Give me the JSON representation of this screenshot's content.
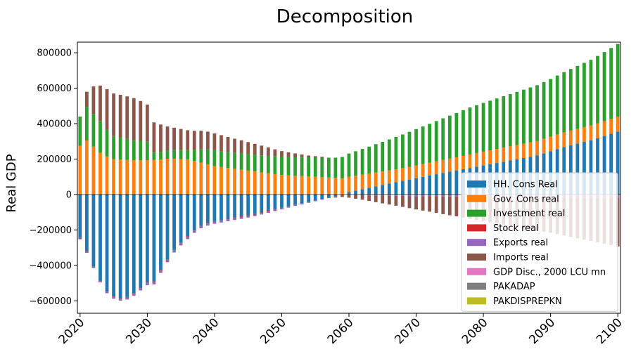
{
  "chart_data": {
    "type": "bar",
    "stacked": true,
    "title": "Decomposition",
    "xlabel": "",
    "ylabel": "Real GDP",
    "x_start": 2020,
    "x_end": 2100,
    "xlim": [
      2019.6,
      2100.4
    ],
    "ylim": [
      -670000,
      860000
    ],
    "x_ticks": [
      2020,
      2030,
      2040,
      2050,
      2060,
      2070,
      2080,
      2090,
      2100
    ],
    "y_ticks": [
      -600000,
      -400000,
      -200000,
      0,
      200000,
      400000,
      600000,
      800000
    ],
    "y_tick_labels": [
      "−600000",
      "−400000",
      "−200000",
      "0",
      "200000",
      "400000",
      "600000",
      "800000"
    ],
    "legend_position": "lower-right",
    "series": [
      {
        "name": "HH. Cons Real",
        "color": "#1f77b4",
        "anchors": [
          [
            2020,
            -245000
          ],
          [
            2021,
            -320000
          ],
          [
            2022,
            -405000
          ],
          [
            2023,
            -485000
          ],
          [
            2024,
            -545000
          ],
          [
            2025,
            -575000
          ],
          [
            2026,
            -585000
          ],
          [
            2027,
            -578000
          ],
          [
            2028,
            -555000
          ],
          [
            2029,
            -525000
          ],
          [
            2030,
            -495000
          ],
          [
            2031,
            -490000
          ],
          [
            2032,
            -425000
          ],
          [
            2033,
            -365000
          ],
          [
            2034,
            -310000
          ],
          [
            2035,
            -270000
          ],
          [
            2036,
            -235000
          ],
          [
            2037,
            -200000
          ],
          [
            2038,
            -175000
          ],
          [
            2039,
            -160000
          ],
          [
            2040,
            -150000
          ],
          [
            2041,
            -143000
          ],
          [
            2042,
            -137000
          ],
          [
            2043,
            -130000
          ],
          [
            2044,
            -124000
          ],
          [
            2045,
            -117000
          ],
          [
            2046,
            -110000
          ],
          [
            2047,
            -101000
          ],
          [
            2048,
            -92000
          ],
          [
            2049,
            -83000
          ],
          [
            2050,
            -74000
          ],
          [
            2051,
            -65000
          ],
          [
            2052,
            -56000
          ],
          [
            2053,
            -48000
          ],
          [
            2054,
            -40000
          ],
          [
            2055,
            -32000
          ],
          [
            2056,
            -24000
          ],
          [
            2057,
            -16000
          ],
          [
            2058,
            -8000
          ],
          [
            2059,
            0
          ],
          [
            2060,
            14000
          ],
          [
            2062,
            30000
          ],
          [
            2064,
            46000
          ],
          [
            2066,
            62000
          ],
          [
            2068,
            77000
          ],
          [
            2070,
            92000
          ],
          [
            2072,
            107000
          ],
          [
            2074,
            122000
          ],
          [
            2076,
            136000
          ],
          [
            2078,
            150000
          ],
          [
            2080,
            164000
          ],
          [
            2082,
            178000
          ],
          [
            2084,
            192000
          ],
          [
            2086,
            206000
          ],
          [
            2088,
            220000
          ],
          [
            2090,
            245000
          ],
          [
            2092,
            268000
          ],
          [
            2094,
            288000
          ],
          [
            2096,
            306000
          ],
          [
            2098,
            330000
          ],
          [
            2100,
            355000
          ]
        ]
      },
      {
        "name": "Gov. Cons real",
        "color": "#ff7f0e",
        "anchors": [
          [
            2020,
            275000
          ],
          [
            2021,
            305000
          ],
          [
            2022,
            270000
          ],
          [
            2023,
            235000
          ],
          [
            2024,
            215000
          ],
          [
            2025,
            200000
          ],
          [
            2026,
            198000
          ],
          [
            2027,
            196000
          ],
          [
            2028,
            194000
          ],
          [
            2029,
            193000
          ],
          [
            2030,
            193000
          ],
          [
            2031,
            195000
          ],
          [
            2032,
            198000
          ],
          [
            2033,
            202000
          ],
          [
            2034,
            202000
          ],
          [
            2035,
            200000
          ],
          [
            2036,
            197000
          ],
          [
            2037,
            190000
          ],
          [
            2038,
            180000
          ],
          [
            2039,
            170000
          ],
          [
            2040,
            160000
          ],
          [
            2041,
            155000
          ],
          [
            2042,
            150000
          ],
          [
            2043,
            145000
          ],
          [
            2044,
            140000
          ],
          [
            2045,
            135000
          ],
          [
            2046,
            130000
          ],
          [
            2047,
            125000
          ],
          [
            2048,
            120000
          ],
          [
            2049,
            115000
          ],
          [
            2050,
            110000
          ],
          [
            2052,
            106000
          ],
          [
            2054,
            102000
          ],
          [
            2056,
            98000
          ],
          [
            2058,
            94000
          ],
          [
            2059,
            90000
          ],
          [
            2060,
            87000
          ],
          [
            2062,
            82000
          ],
          [
            2064,
            78000
          ],
          [
            2066,
            74000
          ],
          [
            2068,
            72000
          ],
          [
            2070,
            72000
          ],
          [
            2072,
            72000
          ],
          [
            2074,
            73000
          ],
          [
            2076,
            74000
          ],
          [
            2078,
            76000
          ],
          [
            2080,
            78000
          ],
          [
            2082,
            79000
          ],
          [
            2084,
            80000
          ],
          [
            2086,
            81000
          ],
          [
            2088,
            82000
          ],
          [
            2090,
            82000
          ],
          [
            2092,
            83000
          ],
          [
            2094,
            83000
          ],
          [
            2096,
            84000
          ],
          [
            2098,
            84000
          ],
          [
            2100,
            85000
          ]
        ]
      },
      {
        "name": "Investment real",
        "color": "#2ca02c",
        "anchors": [
          [
            2020,
            165000
          ],
          [
            2021,
            190000
          ],
          [
            2022,
            185000
          ],
          [
            2023,
            180000
          ],
          [
            2024,
            150000
          ],
          [
            2025,
            130000
          ],
          [
            2026,
            125000
          ],
          [
            2027,
            118000
          ],
          [
            2028,
            110000
          ],
          [
            2029,
            110000
          ],
          [
            2030,
            105000
          ],
          [
            2031,
            42000
          ],
          [
            2032,
            42000
          ],
          [
            2033,
            45000
          ],
          [
            2034,
            50000
          ],
          [
            2035,
            52000
          ],
          [
            2036,
            54000
          ],
          [
            2037,
            62000
          ],
          [
            2038,
            75000
          ],
          [
            2039,
            85000
          ],
          [
            2040,
            90000
          ],
          [
            2041,
            90000
          ],
          [
            2042,
            90000
          ],
          [
            2043,
            90000
          ],
          [
            2044,
            92000
          ],
          [
            2045,
            93000
          ],
          [
            2046,
            94000
          ],
          [
            2047,
            96000
          ],
          [
            2048,
            98000
          ],
          [
            2049,
            100000
          ],
          [
            2050,
            102000
          ],
          [
            2052,
            104000
          ],
          [
            2054,
            106000
          ],
          [
            2056,
            110000
          ],
          [
            2058,
            114000
          ],
          [
            2060,
            130000
          ],
          [
            2062,
            145000
          ],
          [
            2064,
            160000
          ],
          [
            2066,
            175000
          ],
          [
            2068,
            190000
          ],
          [
            2070,
            205000
          ],
          [
            2072,
            220000
          ],
          [
            2074,
            235000
          ],
          [
            2076,
            250000
          ],
          [
            2078,
            265000
          ],
          [
            2080,
            275000
          ],
          [
            2082,
            285000
          ],
          [
            2084,
            295000
          ],
          [
            2086,
            305000
          ],
          [
            2088,
            315000
          ],
          [
            2090,
            325000
          ],
          [
            2092,
            340000
          ],
          [
            2094,
            355000
          ],
          [
            2096,
            370000
          ],
          [
            2098,
            390000
          ],
          [
            2100,
            410000
          ]
        ]
      },
      {
        "name": "Stock real",
        "color": "#d62728",
        "anchors": [
          [
            2020,
            -3000
          ],
          [
            2100,
            -3000
          ]
        ]
      },
      {
        "name": "Exports real",
        "color": "#9467bd",
        "anchors": [
          [
            2020,
            -5000
          ],
          [
            2025,
            -10000
          ],
          [
            2030,
            -14000
          ],
          [
            2035,
            -14000
          ],
          [
            2040,
            -12000
          ],
          [
            2045,
            -10000
          ],
          [
            2050,
            -7000
          ],
          [
            2055,
            -3000
          ],
          [
            2060,
            0
          ],
          [
            2070,
            -6000
          ],
          [
            2080,
            -10000
          ],
          [
            2090,
            -13000
          ],
          [
            2100,
            -15000
          ]
        ]
      },
      {
        "name": "Imports real",
        "color": "#8c564b",
        "anchors": [
          [
            2020,
            0
          ],
          [
            2021,
            85000
          ],
          [
            2022,
            155000
          ],
          [
            2023,
            200000
          ],
          [
            2024,
            230000
          ],
          [
            2025,
            240000
          ],
          [
            2026,
            240000
          ],
          [
            2027,
            240000
          ],
          [
            2028,
            240000
          ],
          [
            2029,
            225000
          ],
          [
            2030,
            210000
          ],
          [
            2031,
            170000
          ],
          [
            2032,
            155000
          ],
          [
            2033,
            137000
          ],
          [
            2034,
            125000
          ],
          [
            2035,
            118000
          ],
          [
            2036,
            112000
          ],
          [
            2037,
            108000
          ],
          [
            2038,
            105000
          ],
          [
            2039,
            100000
          ],
          [
            2040,
            95000
          ],
          [
            2041,
            90000
          ],
          [
            2042,
            85000
          ],
          [
            2043,
            80000
          ],
          [
            2044,
            74000
          ],
          [
            2045,
            68000
          ],
          [
            2046,
            62000
          ],
          [
            2047,
            55000
          ],
          [
            2048,
            48000
          ],
          [
            2049,
            40000
          ],
          [
            2050,
            33000
          ],
          [
            2052,
            22000
          ],
          [
            2054,
            12000
          ],
          [
            2056,
            5000
          ],
          [
            2057,
            0
          ],
          [
            2058,
            -5000
          ],
          [
            2060,
            -15000
          ],
          [
            2062,
            -25000
          ],
          [
            2064,
            -38000
          ],
          [
            2066,
            -50000
          ],
          [
            2068,
            -62000
          ],
          [
            2070,
            -75000
          ],
          [
            2072,
            -87000
          ],
          [
            2074,
            -100000
          ],
          [
            2076,
            -112000
          ],
          [
            2078,
            -125000
          ],
          [
            2080,
            -137000
          ],
          [
            2082,
            -150000
          ],
          [
            2084,
            -162000
          ],
          [
            2086,
            -175000
          ],
          [
            2088,
            -187000
          ],
          [
            2090,
            -200000
          ],
          [
            2092,
            -215000
          ],
          [
            2094,
            -230000
          ],
          [
            2096,
            -245000
          ],
          [
            2098,
            -260000
          ],
          [
            2100,
            -275000
          ]
        ]
      },
      {
        "name": "GDP Disc., 2000 LCU mn",
        "color": "#e377c2",
        "anchors": [
          [
            2020,
            0
          ],
          [
            2100,
            0
          ]
        ]
      },
      {
        "name": "PAKADAP",
        "color": "#7f7f7f",
        "anchors": [
          [
            2020,
            0
          ],
          [
            2100,
            0
          ]
        ]
      },
      {
        "name": "PAKDISPREPKN",
        "color": "#bcbd22",
        "anchors": [
          [
            2020,
            0
          ],
          [
            2100,
            0
          ]
        ]
      }
    ]
  }
}
